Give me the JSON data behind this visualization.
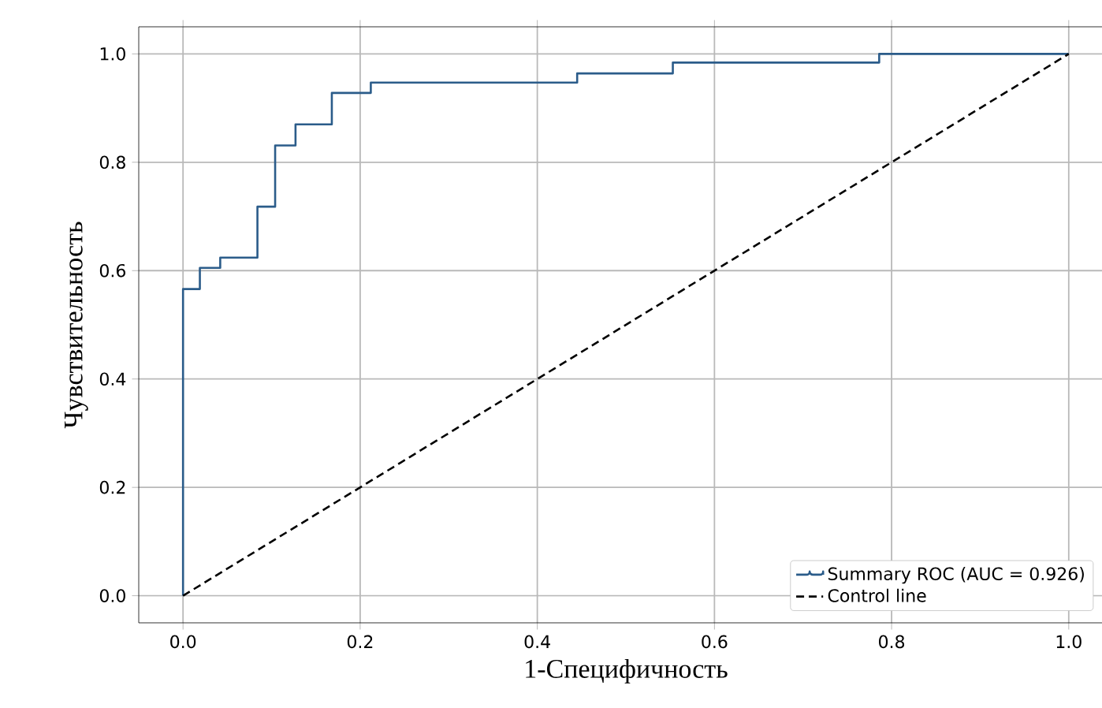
{
  "chart_data": {
    "type": "step",
    "xlabel": "1-Специфичность",
    "ylabel": "Чувствительность",
    "series": [
      {
        "name": "Summary ROC (AUC = 0.926)",
        "color": "#2b5c8a",
        "line_style": "solid",
        "x": [
          0,
          0,
          0.019,
          0.042,
          0.084,
          0.104,
          0.127,
          0.168,
          0.212,
          0.445,
          0.553,
          0.786,
          1.0
        ],
        "values": [
          0,
          0.566,
          0.605,
          0.624,
          0.718,
          0.831,
          0.87,
          0.928,
          0.947,
          0.964,
          0.984,
          1.0,
          1.0
        ]
      },
      {
        "name": "Control line",
        "color": "#000000",
        "type": "line",
        "line_style": "dashed",
        "x": [
          0,
          1
        ],
        "values": [
          0,
          1
        ]
      }
    ],
    "xlim": [
      -0.05,
      1.05
    ],
    "ylim": [
      -0.05,
      1.05
    ],
    "xticks": [
      {
        "value": 0,
        "label": "0.0"
      },
      0.2,
      0.4,
      0.6,
      0.8,
      {
        "value": 1,
        "label": "1.0"
      }
    ],
    "yticks": [
      {
        "value": 0,
        "label": "0.0"
      },
      0.2,
      0.4,
      0.6,
      0.8,
      {
        "value": 1,
        "label": "1.0"
      }
    ],
    "grid": true,
    "legend": "bottom right",
    "marker": "none"
  }
}
